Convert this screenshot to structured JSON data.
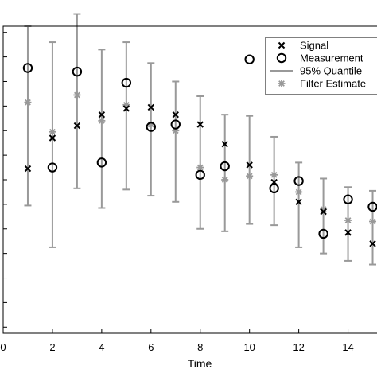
{
  "chart_data": {
    "type": "scatter",
    "title": "",
    "xlabel": "Time",
    "ylabel": "",
    "xlim": [
      0,
      15.5
    ],
    "ylim": [
      -12.5,
      12.5
    ],
    "x_ticks": [
      0,
      2,
      4,
      6,
      8,
      10,
      12,
      14
    ],
    "x_tick_labels": [
      "0",
      "2",
      "4",
      "6",
      "8",
      "10",
      "12",
      "14"
    ],
    "y_ticks": [
      -12,
      -10,
      -8,
      -6,
      -4,
      -2,
      0,
      2,
      4,
      6,
      8,
      10,
      12
    ],
    "grid": false,
    "legend_position": "top-right",
    "x": [
      1,
      2,
      3,
      4,
      5,
      6,
      7,
      8,
      9,
      10,
      11,
      12,
      13,
      14,
      15
    ],
    "series": [
      {
        "name": "Signal",
        "marker": "x",
        "color": "#000000",
        "values": [
          0.9,
          3.4,
          4.4,
          5.3,
          5.8,
          5.9,
          5.3,
          4.5,
          2.9,
          1.2,
          -0.2,
          -1.8,
          -2.6,
          -4.3,
          -5.2
        ]
      },
      {
        "name": "Measurement",
        "marker": "circle",
        "color": "#000000",
        "values": [
          9.1,
          1.0,
          8.8,
          1.4,
          7.9,
          4.3,
          4.5,
          0.4,
          1.1,
          9.8,
          -0.7,
          -0.1,
          -4.4,
          -1.6,
          -2.2
        ]
      },
      {
        "name": "95% Quantile",
        "type": "errorbar",
        "color": "#999999",
        "lower": [
          -2.1,
          -5.5,
          -0.7,
          -2.3,
          -0.8,
          -1.3,
          -1.8,
          -4.0,
          -4.2,
          -3.6,
          -3.7,
          -5.5,
          -6.0,
          -6.6,
          -6.9
        ],
        "upper": [
          12.5,
          11.2,
          13.5,
          10.6,
          11.2,
          9.5,
          8.0,
          6.8,
          5.3,
          5.2,
          3.5,
          1.4,
          0.1,
          -0.6,
          -0.9
        ]
      },
      {
        "name": "Filter Estimate",
        "marker": "asterisk",
        "color": "#999999",
        "values": [
          6.3,
          3.9,
          6.9,
          4.8,
          6.1,
          4.5,
          4.0,
          1.0,
          0.0,
          0.3,
          0.4,
          -1.0,
          -2.4,
          -3.3,
          -3.4
        ]
      }
    ]
  }
}
